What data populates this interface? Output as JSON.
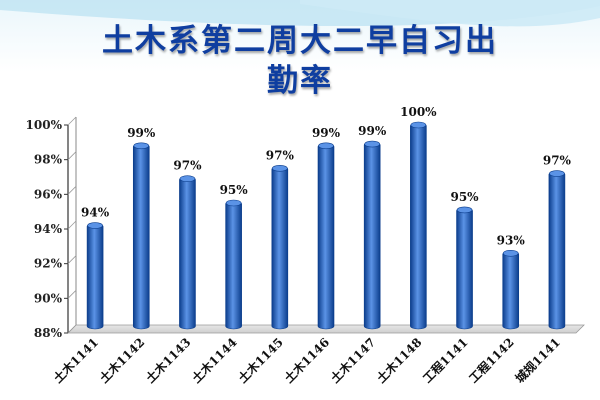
{
  "title_lines": [
    "土木系第二周大二早自习出",
    "勤率"
  ],
  "colors": {
    "bar": "#1f5fbf",
    "bar_dark": "#0b3d8c",
    "bar_light": "#5b93e6",
    "title": "#0f3ea0",
    "axis": "#333333"
  },
  "chart_data": {
    "type": "bar",
    "title": "土木系第二周大二早自习出勤率",
    "xlabel": "",
    "ylabel": "",
    "categories": [
      "土木1141",
      "土木1142",
      "土木1143",
      "土木1144",
      "土木1145",
      "土木1146",
      "土木1147",
      "土木1148",
      "工程1141",
      "工程1142",
      "城规1141"
    ],
    "values": [
      94.2,
      98.8,
      96.9,
      95.5,
      97.5,
      98.8,
      98.9,
      100,
      95.1,
      92.6,
      97.2
    ],
    "data_labels": [
      "94%",
      "99%",
      "97%",
      "95%",
      "97%",
      "99%",
      "99%",
      "100%",
      "95%",
      "93%",
      "97%"
    ],
    "ylim": [
      88,
      100
    ],
    "yticks": [
      88,
      90,
      92,
      94,
      96,
      98,
      100
    ],
    "ytick_labels": [
      "88%",
      "90%",
      "92%",
      "94%",
      "96%",
      "98%",
      "100%"
    ],
    "grid": false,
    "legend": "none"
  }
}
